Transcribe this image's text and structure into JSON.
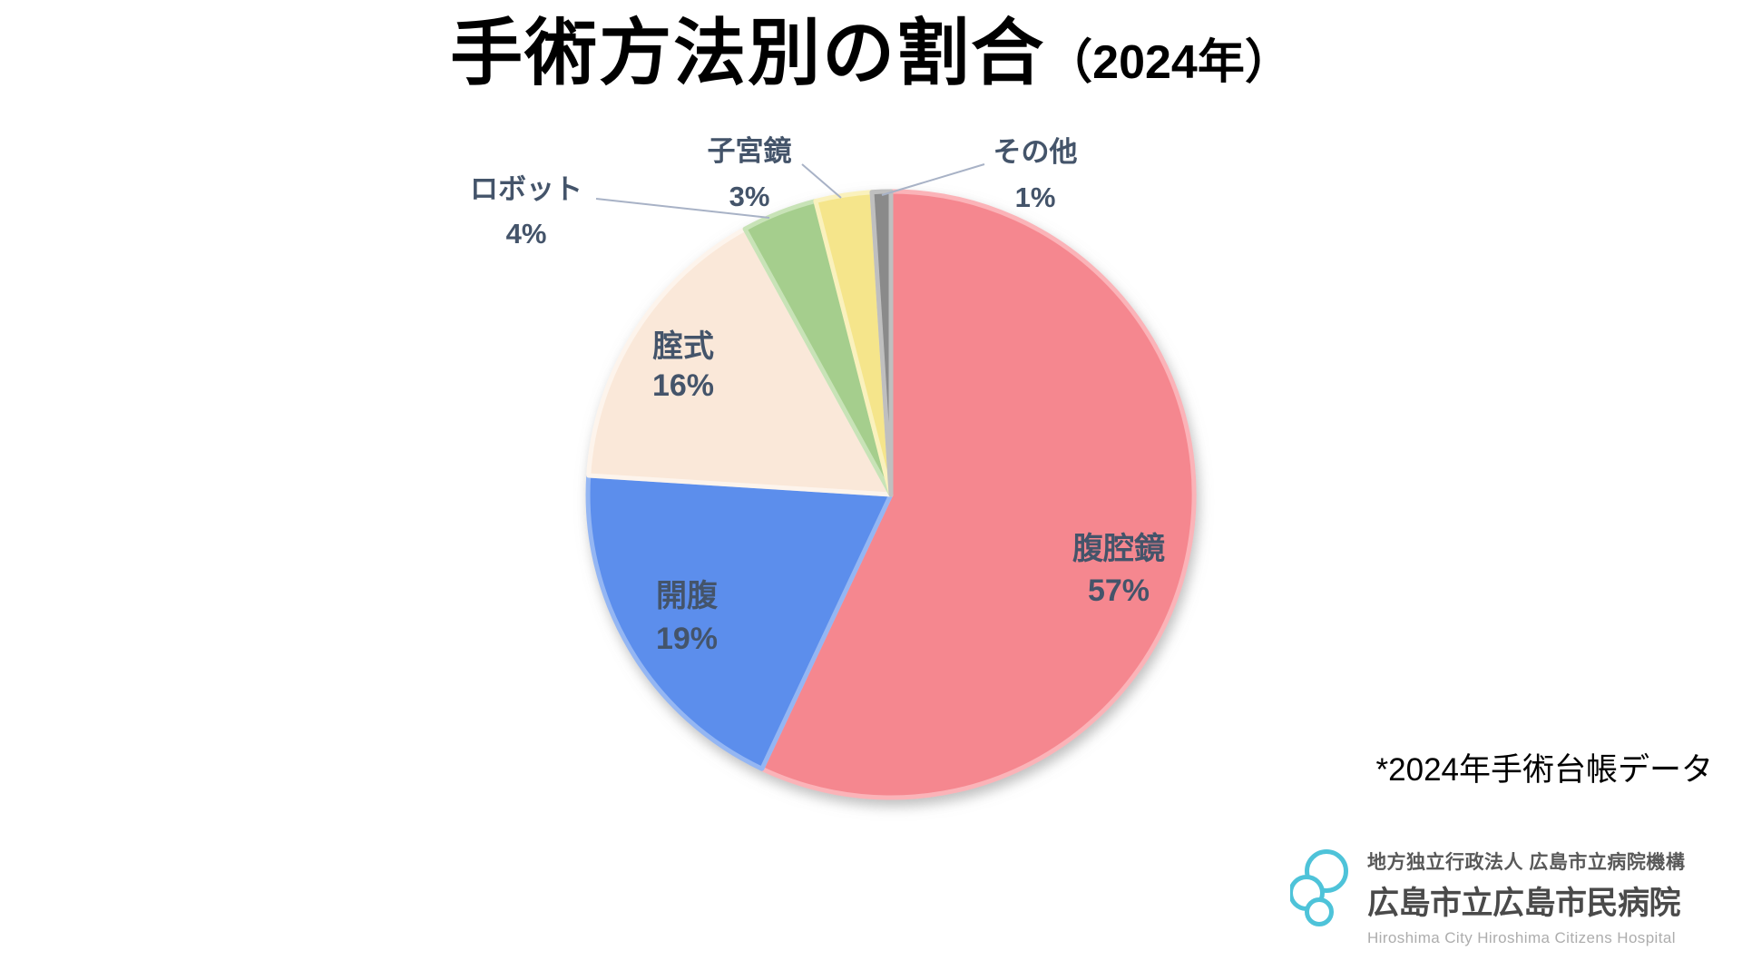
{
  "title": {
    "main": "手術方法別の割合",
    "suffix": "（2024年）"
  },
  "footnote": "*2024年手術台帳データ",
  "logo": {
    "org_line": "地方独立行政法人 広島市立病院機構",
    "hospital_name": "広島市立広島市民病院",
    "hospital_name_en": "Hiroshima City Hiroshima Citizens Hospital",
    "mark_color": "#4EC3D9"
  },
  "colors": {
    "label_text": "#44546A",
    "leader_line": "#A8B2C6",
    "title_text": "#000000"
  },
  "chart_data": {
    "type": "pie",
    "title": "手術方法別の割合（2024年）",
    "start_angle_deg": 0,
    "direction": "clockwise",
    "legend": "none",
    "data_labels": "category name + percentage",
    "segments": [
      {
        "key": "laparoscopy",
        "label": "腹腔鏡",
        "value": 57,
        "pct_text": "57%",
        "color": "#F5878F",
        "edge": "#FBB3B8",
        "label_placement": "inside"
      },
      {
        "key": "laparotomy",
        "label": "開腹",
        "value": 19,
        "pct_text": "19%",
        "color": "#5B8EEC",
        "edge": "#94B6F3",
        "label_placement": "inside"
      },
      {
        "key": "vaginal",
        "label": "腟式",
        "value": 16,
        "pct_text": "16%",
        "color": "#FAE8D9",
        "edge": "#FDF4EC",
        "label_placement": "inside"
      },
      {
        "key": "robot",
        "label": "ロボット",
        "value": 4,
        "pct_text": "4%",
        "color": "#A5CE8D",
        "edge": "#C8E3B7",
        "label_placement": "outside"
      },
      {
        "key": "hysteroscopy",
        "label": "子宮鏡",
        "value": 3,
        "pct_text": "3%",
        "color": "#F5E58B",
        "edge": "#FAF1BD",
        "label_placement": "outside"
      },
      {
        "key": "other",
        "label": "その他",
        "value": 1,
        "pct_text": "1%",
        "color": "#8A8A8A",
        "edge": "#BFBFBF",
        "label_placement": "outside"
      }
    ]
  }
}
